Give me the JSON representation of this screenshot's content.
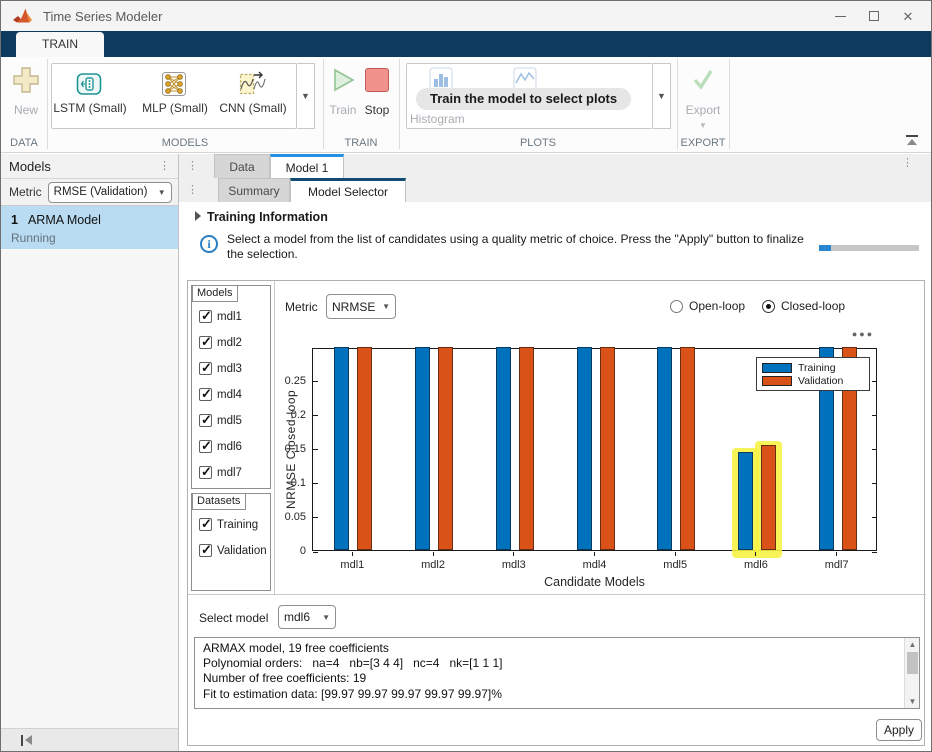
{
  "window": {
    "title": "Time Series Modeler"
  },
  "ribbon": {
    "tab": "TRAIN",
    "sections": [
      {
        "name": "DATA",
        "items": [
          {
            "label": "New",
            "disabled": true
          }
        ]
      },
      {
        "name": "MODELS",
        "items": [
          {
            "label": "LSTM (Small)"
          },
          {
            "label": "MLP (Small)"
          },
          {
            "label": "CNN (Small)"
          }
        ]
      },
      {
        "name": "TRAIN",
        "items": [
          {
            "label": "Train",
            "disabled": true
          },
          {
            "label": "Stop",
            "disabled": false
          }
        ]
      },
      {
        "name": "PLOTS",
        "items": [
          {
            "label": "Histogram",
            "disabled": true
          }
        ],
        "tooltip": "Train the model to select plots"
      },
      {
        "name": "EXPORT",
        "items": [
          {
            "label": "Export",
            "disabled": true
          }
        ]
      }
    ]
  },
  "sidebar": {
    "header": "Models",
    "metric_label": "Metric",
    "metric_value": "RMSE (Validation)",
    "items": [
      {
        "index": "1",
        "name": "ARMA Model",
        "status": "Running",
        "selected": true
      }
    ]
  },
  "doc_tabs": [
    {
      "label": "Data",
      "active": false
    },
    {
      "label": "Model 1",
      "active": true
    }
  ],
  "sub_tabs": [
    {
      "label": "Summary",
      "active": false
    },
    {
      "label": "Model Selector",
      "active": true
    }
  ],
  "training_info": {
    "header": "Training Information",
    "line1": "Select a model from the list of candidates using a quality metric of choice. Press the \"Apply\" button to finalize",
    "line2": "the selection.",
    "progress_percent": 12
  },
  "selector": {
    "models_group_label": "Models",
    "models": [
      "mdl1",
      "mdl2",
      "mdl3",
      "mdl4",
      "mdl5",
      "mdl6",
      "mdl7"
    ],
    "datasets_group_label": "Datasets",
    "datasets": [
      "Training",
      "Validation"
    ],
    "metric_label": "Metric",
    "metric_value": "NRMSE",
    "loop_options": [
      {
        "label": "Open-loop",
        "selected": false
      },
      {
        "label": "Closed-loop",
        "selected": true
      }
    ],
    "select_model_label": "Select model",
    "select_model_value": "mdl6",
    "details_lines": [
      "ARMAX model, 19 free coefficients",
      "Polynomial orders:   na=4   nb=[3 4 4]   nc=4   nk=[1 1 1]",
      "Number of free coefficients: 19",
      "Fit to estimation data: [99.97 99.97 99.97 99.97 99.97]%",
      "- - - - - - - - - - - - - - - - - - - - - - - - - - - - - - - - - - - - - - - - - - - - - - - - - - - - - - - - - - - - - - - - - - - - - - - - - - - - - - - - - - - - - - - - - - - - - - - - - - - -"
    ],
    "apply_label": "Apply"
  },
  "chart_data": {
    "type": "bar",
    "title": "",
    "xlabel": "Candidate Models",
    "ylabel": "NRMSE Closed-loop",
    "categories": [
      "mdl1",
      "mdl2",
      "mdl3",
      "mdl4",
      "mdl5",
      "mdl6",
      "mdl7"
    ],
    "series": [
      {
        "name": "Training",
        "color": "#0072BD",
        "values": [
          0.3,
          0.3,
          0.3,
          0.3,
          0.3,
          0.144,
          0.3
        ]
      },
      {
        "name": "Validation",
        "color": "#D95319",
        "values": [
          0.3,
          0.3,
          0.3,
          0.3,
          0.3,
          0.154,
          0.3
        ]
      }
    ],
    "ylim": [
      0,
      0.2985
    ],
    "yticks": [
      0,
      0.05,
      0.1,
      0.15,
      0.2,
      0.25
    ],
    "grid": false,
    "legend_position": "top-right",
    "highlighted_category": "mdl6",
    "highlight_color": "#F5F242",
    "note": "Bars for mdl1-mdl5 and mdl7 exceed the y-axis upper limit and are clipped at the top of the axes."
  }
}
